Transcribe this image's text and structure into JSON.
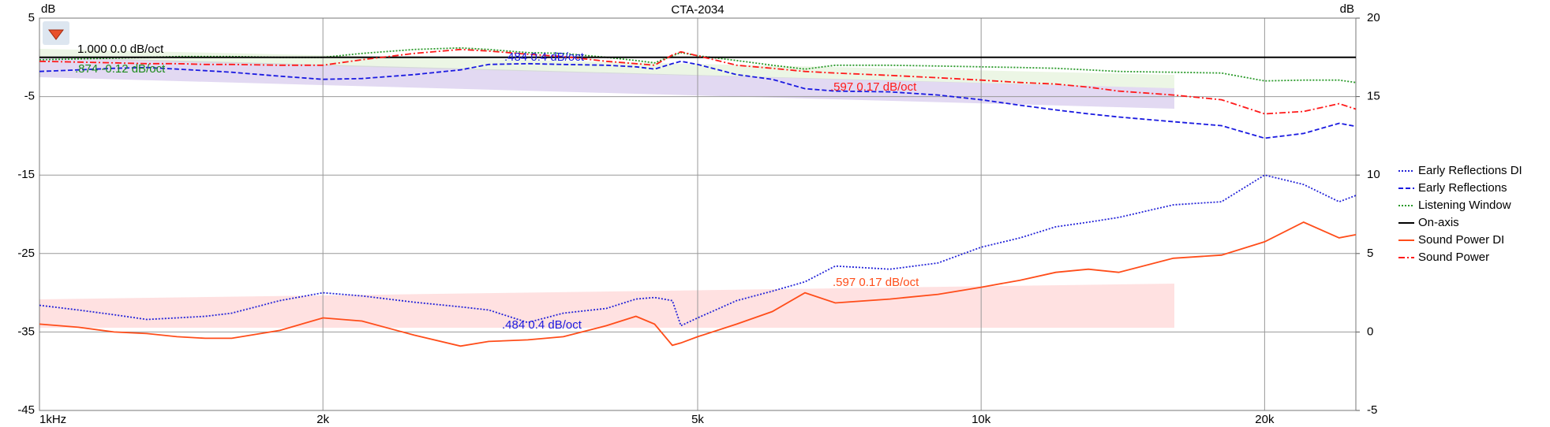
{
  "chart_data": {
    "type": "line",
    "title": "CTA-2034",
    "ylabel": "dB",
    "y2label": "dB",
    "x": [
      1000,
      1100,
      1200,
      1300,
      1400,
      1500,
      1600,
      1800,
      2000,
      2200,
      2500,
      2800,
      3000,
      3300,
      3600,
      4000,
      4300,
      4500,
      4700,
      4800,
      5000,
      5500,
      6000,
      6500,
      7000,
      8000,
      9000,
      10000,
      11000,
      12000,
      13000,
      14000,
      16000,
      18000,
      20000,
      22000,
      24000,
      25000
    ],
    "xlim": [
      1000,
      25000
    ],
    "xscale": "log",
    "xticks": [
      {
        "value": 1000,
        "label": "1kHz"
      },
      {
        "value": 2000,
        "label": "2k"
      },
      {
        "value": 5000,
        "label": "5k"
      },
      {
        "value": 10000,
        "label": "10k"
      },
      {
        "value": 20000,
        "label": "20k"
      }
    ],
    "ylim": [
      -45,
      5
    ],
    "yticks": [
      5,
      -5,
      -15,
      -25,
      -35,
      -45
    ],
    "y2lim": [
      -5,
      20
    ],
    "y2ticks": [
      20,
      15,
      10,
      5,
      0,
      -5
    ],
    "grid": true,
    "legend": "right",
    "series": [
      {
        "name": "Early Reflections DI",
        "color": "#2424d8",
        "dash": "dotted",
        "axis": "y2",
        "values": [
          1.7,
          1.4,
          1.1,
          0.8,
          0.9,
          1.0,
          1.2,
          2.0,
          2.5,
          2.3,
          1.9,
          1.6,
          1.4,
          0.6,
          1.2,
          1.5,
          2.1,
          2.2,
          2.0,
          0.4,
          0.9,
          2.0,
          2.6,
          3.2,
          4.2,
          4.0,
          4.4,
          5.4,
          6.0,
          6.7,
          7.0,
          7.3,
          8.1,
          8.3,
          10.0,
          9.4,
          8.3,
          8.7
        ]
      },
      {
        "name": "Early Reflections",
        "color": "#1a1ae0",
        "dash": "dashed",
        "values": [
          -1.8,
          -1.6,
          -1.4,
          -1.3,
          -1.5,
          -1.7,
          -1.9,
          -2.4,
          -2.8,
          -2.7,
          -2.2,
          -1.6,
          -0.9,
          -0.8,
          -0.9,
          -1.0,
          -1.2,
          -1.5,
          -0.8,
          -0.5,
          -0.9,
          -2.2,
          -2.8,
          -4.0,
          -4.3,
          -4.4,
          -4.8,
          -5.4,
          -6.1,
          -6.7,
          -7.2,
          -7.6,
          -8.2,
          -8.7,
          -10.3,
          -9.7,
          -8.4,
          -8.8
        ]
      },
      {
        "name": "Listening Window",
        "color": "#2a9a2a",
        "dash": "dotted",
        "values": [
          -0.3,
          -0.2,
          -0.1,
          0.0,
          0.1,
          0.1,
          0.1,
          0.0,
          0.0,
          0.5,
          1.0,
          1.2,
          1.0,
          0.6,
          0.5,
          0.0,
          -0.4,
          -0.7,
          0.2,
          0.6,
          0.2,
          -0.4,
          -1.0,
          -1.5,
          -1.0,
          -1.0,
          -1.1,
          -1.2,
          -1.3,
          -1.4,
          -1.6,
          -1.8,
          -1.9,
          -2.0,
          -3.0,
          -2.9,
          -2.9,
          -3.2
        ]
      },
      {
        "name": "On-axis",
        "color": "#000000",
        "dash": "solid",
        "values": [
          0,
          0,
          0,
          0,
          0,
          0,
          0,
          0,
          0,
          0,
          0,
          0,
          0,
          0,
          0,
          0,
          0,
          0,
          0,
          0,
          0,
          0,
          0,
          0,
          0,
          0,
          0,
          0,
          0,
          0,
          0,
          0,
          0,
          0,
          0,
          0,
          0,
          0
        ]
      },
      {
        "name": "Sound Power DI",
        "color": "#ff4d1a",
        "dash": "solid",
        "axis": "y2",
        "values": [
          0.5,
          0.3,
          0.0,
          -0.1,
          -0.3,
          -0.4,
          -0.4,
          0.1,
          0.9,
          0.7,
          -0.2,
          -0.9,
          -0.6,
          -0.5,
          -0.3,
          0.4,
          1.0,
          0.5,
          -0.85,
          -0.7,
          -0.3,
          0.5,
          1.3,
          2.5,
          1.85,
          2.1,
          2.4,
          2.85,
          3.3,
          3.8,
          4.0,
          3.8,
          4.7,
          4.9,
          5.75,
          7.0,
          6.0,
          6.2
        ]
      },
      {
        "name": "Sound Power",
        "color": "#ff1a1a",
        "dash": "dashdot",
        "values": [
          -0.5,
          -0.6,
          -0.7,
          -0.8,
          -0.8,
          -0.9,
          -0.9,
          -1.0,
          -1.0,
          -0.3,
          0.5,
          1.0,
          0.8,
          0.4,
          0.1,
          -0.5,
          -0.8,
          -1.0,
          0.3,
          0.7,
          0.2,
          -1.0,
          -1.4,
          -1.8,
          -2.0,
          -2.3,
          -2.6,
          -2.9,
          -3.2,
          -3.4,
          -3.8,
          -4.3,
          -4.8,
          -5.4,
          -7.2,
          -6.9,
          -5.9,
          -6.6
        ]
      }
    ],
    "annotations": [
      {
        "text": "1.000  0.0 dB/oct",
        "color": "#000000"
      },
      {
        "text": ".874  -0.12 dB/oct",
        "color": "#1e8c1e"
      },
      {
        "text": ".484  0.4 dB/oct",
        "color": "#1a1ae0"
      },
      {
        "text": ".597  0.17 dB/oct",
        "color": "#ff1a1a"
      },
      {
        "text": ".484  0.4 dB/oct",
        "color": "#1a1ae0"
      },
      {
        "text": ".597  0.17 dB/oct",
        "color": "#ff4d1a"
      }
    ]
  }
}
